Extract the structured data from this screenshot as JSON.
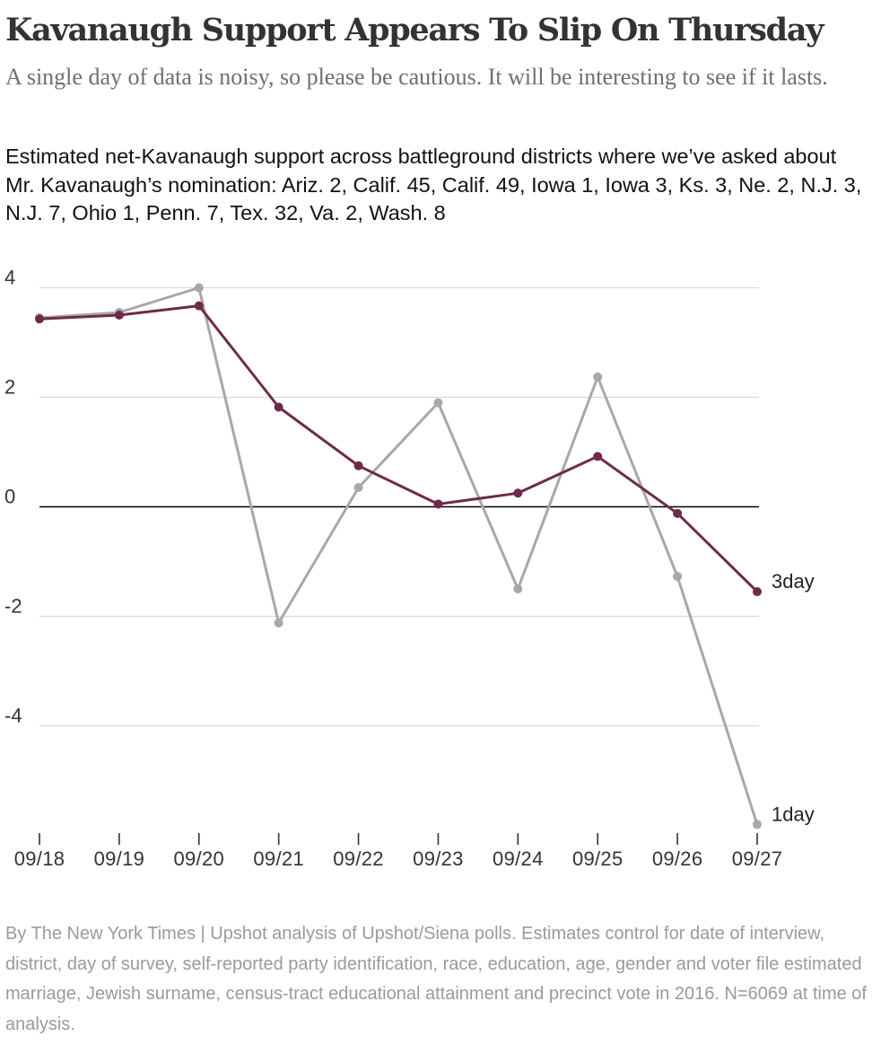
{
  "headline": "Kavanaugh Support Appears To Slip On Thursday",
  "subhead": "A single day of data is noisy, so please be cautious. It will be interesting to see if it lasts.",
  "description": "Estimated net-Kavanaugh support across battleground districts where we’ve asked about Mr. Kavanaugh’s nomination: Ariz. 2, Calif. 45, Calif. 49, Iowa 1, Iowa 3, Ks. 3, Ne. 2, N.J. 3, N.J. 7, Ohio 1, Penn. 7, Tex. 32, Va. 2, Wash. 8",
  "source": "By The New York Times | Upshot analysis of Upshot/Siena polls. Estimates control for date of interview, district, day of survey, self-reported party identification, race, education, age, gender and voter file estimated marriage, Jewish surname, census-tract educational attainment and precinct vote in 2016. N=6069 at time of analysis.",
  "chart_data": {
    "type": "line",
    "title": "Kavanaugh Support Appears To Slip On Thursday",
    "xlabel": "",
    "ylabel": "",
    "x": [
      "09/18",
      "09/19",
      "09/20",
      "09/21",
      "09/22",
      "09/23",
      "09/24",
      "09/25",
      "09/26",
      "09/27"
    ],
    "yticks": [
      4,
      2,
      0,
      -2,
      -4
    ],
    "ylim": [
      -6,
      4.2
    ],
    "grid": true,
    "legend": "direct labels at line ends",
    "series": [
      {
        "name": "1day",
        "color": "#aaa7a5",
        "values": [
          3.45,
          3.55,
          4.0,
          -2.12,
          0.35,
          1.9,
          -1.5,
          2.37,
          -1.27,
          -5.8
        ]
      },
      {
        "name": "3day",
        "color": "#6e2a4b",
        "values": [
          3.43,
          3.5,
          3.67,
          1.82,
          0.75,
          0.05,
          0.25,
          0.92,
          -0.12,
          -1.55
        ]
      }
    ]
  }
}
